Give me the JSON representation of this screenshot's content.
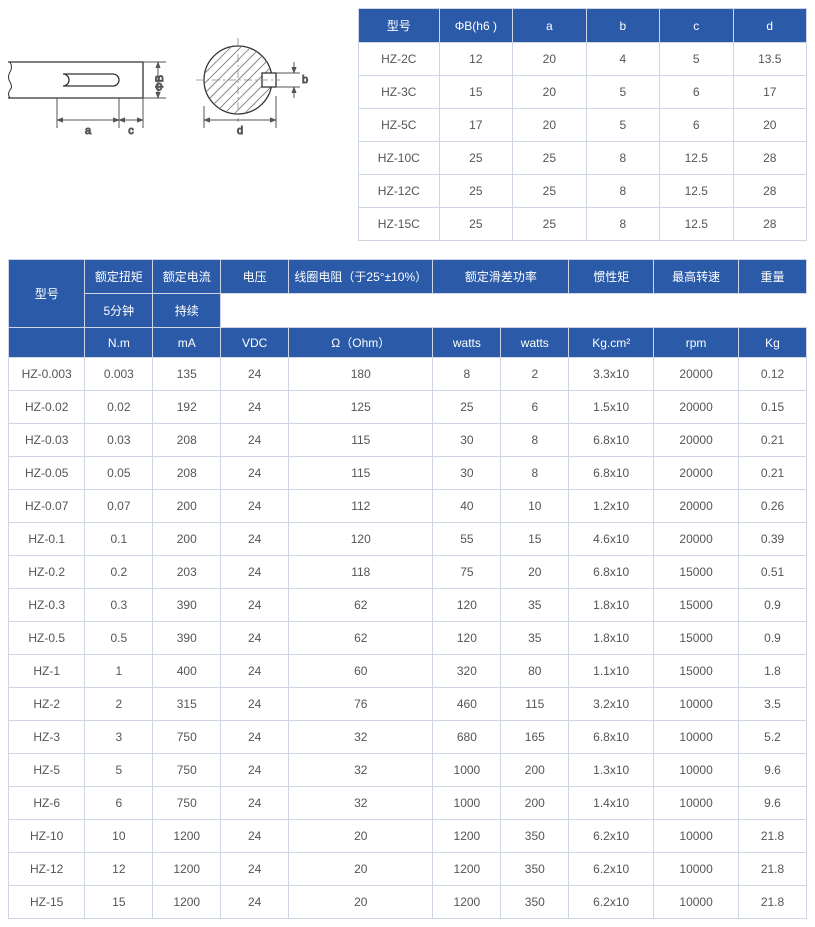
{
  "dimTable": {
    "headers": [
      "型号",
      "ΦB(h6 )",
      "a",
      "b",
      "c",
      "d"
    ],
    "rows": [
      [
        "HZ-2C",
        "12",
        "20",
        "4",
        "5",
        "13.5"
      ],
      [
        "HZ-3C",
        "15",
        "20",
        "5",
        "6",
        "17"
      ],
      [
        "HZ-5C",
        "17",
        "20",
        "5",
        "6",
        "20"
      ],
      [
        "HZ-10C",
        "25",
        "25",
        "8",
        "12.5",
        "28"
      ],
      [
        "HZ-12C",
        "25",
        "25",
        "8",
        "12.5",
        "28"
      ],
      [
        "HZ-15C",
        "25",
        "25",
        "8",
        "12.5",
        "28"
      ]
    ],
    "colWidths": [
      "18%",
      "16.4%",
      "16.4%",
      "16.4%",
      "16.4%",
      "16.4%"
    ]
  },
  "specTable": {
    "row1": {
      "model": {
        "text": "型号",
        "rowspan": 2
      },
      "torque": {
        "text": "额定扭矩"
      },
      "current": {
        "text": "额定电流"
      },
      "voltage": {
        "text": "电压"
      },
      "coil": {
        "text": "线圈电阻（于25°±10%）"
      },
      "slip": {
        "text": "额定滑差功率",
        "colspan": 2
      },
      "inertia": {
        "text": "惯性矩"
      },
      "maxspd": {
        "text": "最高转速"
      },
      "weight": {
        "text": "重量"
      }
    },
    "row2": [
      "5分钟",
      "持续"
    ],
    "units": [
      "N.m",
      "mA",
      "VDC",
      "Ω（Ohm）",
      "watts",
      "watts",
      "Kg.cm²",
      "rpm",
      "Kg"
    ],
    "colWidths": [
      "9%",
      "8%",
      "8%",
      "8%",
      "17%",
      "8%",
      "8%",
      "10%",
      "10%",
      "8%"
    ],
    "rows": [
      [
        "HZ-0.003",
        "0.003",
        "135",
        "24",
        "180",
        "8",
        "2",
        "3.3x10",
        "20000",
        "0.12"
      ],
      [
        "HZ-0.02",
        "0.02",
        "192",
        "24",
        "125",
        "25",
        "6",
        "1.5x10",
        "20000",
        "0.15"
      ],
      [
        "HZ-0.03",
        "0.03",
        "208",
        "24",
        "115",
        "30",
        "8",
        "6.8x10",
        "20000",
        "0.21"
      ],
      [
        "HZ-0.05",
        "0.05",
        "208",
        "24",
        "115",
        "30",
        "8",
        "6.8x10",
        "20000",
        "0.21"
      ],
      [
        "HZ-0.07",
        "0.07",
        "200",
        "24",
        "112",
        "40",
        "10",
        "1.2x10",
        "20000",
        "0.26"
      ],
      [
        "HZ-0.1",
        "0.1",
        "200",
        "24",
        "120",
        "55",
        "15",
        "4.6x10",
        "20000",
        "0.39"
      ],
      [
        "HZ-0.2",
        "0.2",
        "203",
        "24",
        "118",
        "75",
        "20",
        "6.8x10",
        "15000",
        "0.51"
      ],
      [
        "HZ-0.3",
        "0.3",
        "390",
        "24",
        "62",
        "120",
        "35",
        "1.8x10",
        "15000",
        "0.9"
      ],
      [
        "HZ-0.5",
        "0.5",
        "390",
        "24",
        "62",
        "120",
        "35",
        "1.8x10",
        "15000",
        "0.9"
      ],
      [
        "HZ-1",
        "1",
        "400",
        "24",
        "60",
        "320",
        "80",
        "1.1x10",
        "15000",
        "1.8"
      ],
      [
        "HZ-2",
        "2",
        "315",
        "24",
        "76",
        "460",
        "115",
        "3.2x10",
        "10000",
        "3.5"
      ],
      [
        "HZ-3",
        "3",
        "750",
        "24",
        "32",
        "680",
        "165",
        "6.8x10",
        "10000",
        "5.2"
      ],
      [
        "HZ-5",
        "5",
        "750",
        "24",
        "32",
        "1000",
        "200",
        "1.3x10",
        "10000",
        "9.6"
      ],
      [
        "HZ-6",
        "6",
        "750",
        "24",
        "32",
        "1000",
        "200",
        "1.4x10",
        "10000",
        "9.6"
      ],
      [
        "HZ-10",
        "10",
        "1200",
        "24",
        "20",
        "1200",
        "350",
        "6.2x10",
        "10000",
        "21.8"
      ],
      [
        "HZ-12",
        "12",
        "1200",
        "24",
        "20",
        "1200",
        "350",
        "6.2x10",
        "10000",
        "21.8"
      ],
      [
        "HZ-15",
        "15",
        "1200",
        "24",
        "20",
        "1200",
        "350",
        "6.2x10",
        "10000",
        "21.8"
      ]
    ]
  },
  "diagram": {
    "labels": {
      "a": "a",
      "c": "c",
      "d": "d",
      "b": "b",
      "phiB": "ΦB"
    },
    "stroke": "#333",
    "dimStroke": "#555",
    "fontsize": 11
  }
}
